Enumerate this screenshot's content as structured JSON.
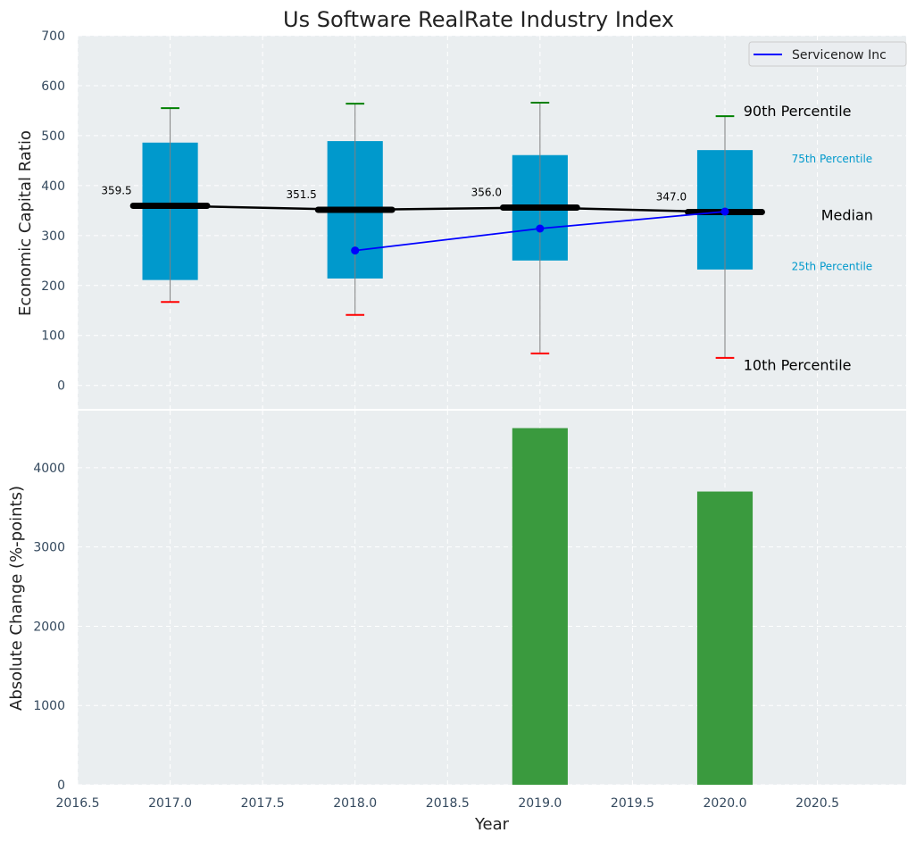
{
  "chart_data": [
    {
      "type": "box",
      "title": "Us Software RealRate Industry Index",
      "xlabel": "",
      "ylabel": "Economic Capital Ratio",
      "xlim": [
        2016.5,
        2020.98
      ],
      "ylim": [
        -47,
        700
      ],
      "yticks": [
        0,
        100,
        200,
        300,
        400,
        500,
        600,
        700
      ],
      "grid": true,
      "legend": {
        "position": "top-right",
        "entries": [
          {
            "label": "Servicenow Inc",
            "color": "#0000ff"
          }
        ]
      },
      "boxes": [
        {
          "x": 2017,
          "p10": 167,
          "p25": 211,
          "median": 359.5,
          "p75": 486,
          "p90": 555,
          "median_label": "359.5"
        },
        {
          "x": 2018,
          "p10": 141,
          "p25": 214,
          "median": 351.5,
          "p75": 489,
          "p90": 564,
          "median_label": "351.5"
        },
        {
          "x": 2019,
          "p10": 64,
          "p25": 250,
          "median": 356.0,
          "p75": 461,
          "p90": 566,
          "median_label": "356.0"
        },
        {
          "x": 2020,
          "p10": 55,
          "p25": 232,
          "median": 347.0,
          "p75": 471,
          "p90": 539,
          "median_label": "347.0"
        }
      ],
      "series": [
        {
          "name": "Servicenow Inc",
          "x": [
            2018,
            2019,
            2020
          ],
          "values": [
            270,
            314,
            348
          ],
          "color": "#0000ff"
        }
      ],
      "annotations": [
        {
          "text": "90th Percentile",
          "x": 2020.1,
          "y": 548,
          "style": "big"
        },
        {
          "text": "75th Percentile",
          "x": 2020.36,
          "y": 455,
          "style": "small"
        },
        {
          "text": "Median",
          "x": 2020.52,
          "y": 340,
          "style": "big"
        },
        {
          "text": "25th Percentile",
          "x": 2020.36,
          "y": 240,
          "style": "small"
        },
        {
          "text": "10th Percentile",
          "x": 2020.1,
          "y": 40,
          "style": "big"
        }
      ],
      "colors": {
        "box": "#0099cc",
        "median": "#000000",
        "p90": "#008000",
        "p10": "#ff0000",
        "whisker": "#808080"
      }
    },
    {
      "type": "bar",
      "title": "",
      "xlabel": "Year",
      "ylabel": "Absolute Change (%-points)",
      "xlim": [
        2016.5,
        2020.98
      ],
      "ylim": [
        0,
        4720
      ],
      "xticks": [
        2016.5,
        2017.0,
        2017.5,
        2018.0,
        2018.5,
        2019.0,
        2019.5,
        2020.0,
        2020.5
      ],
      "xtick_labels": [
        "2016.5",
        "2017.0",
        "2017.5",
        "2018.0",
        "2018.5",
        "2019.0",
        "2019.5",
        "2020.0",
        "2020.5"
      ],
      "yticks": [
        0,
        1000,
        2000,
        3000,
        4000
      ],
      "grid": true,
      "categories": [
        2019,
        2020
      ],
      "values": [
        4500,
        3700
      ],
      "color": "#3a9a3e"
    }
  ]
}
